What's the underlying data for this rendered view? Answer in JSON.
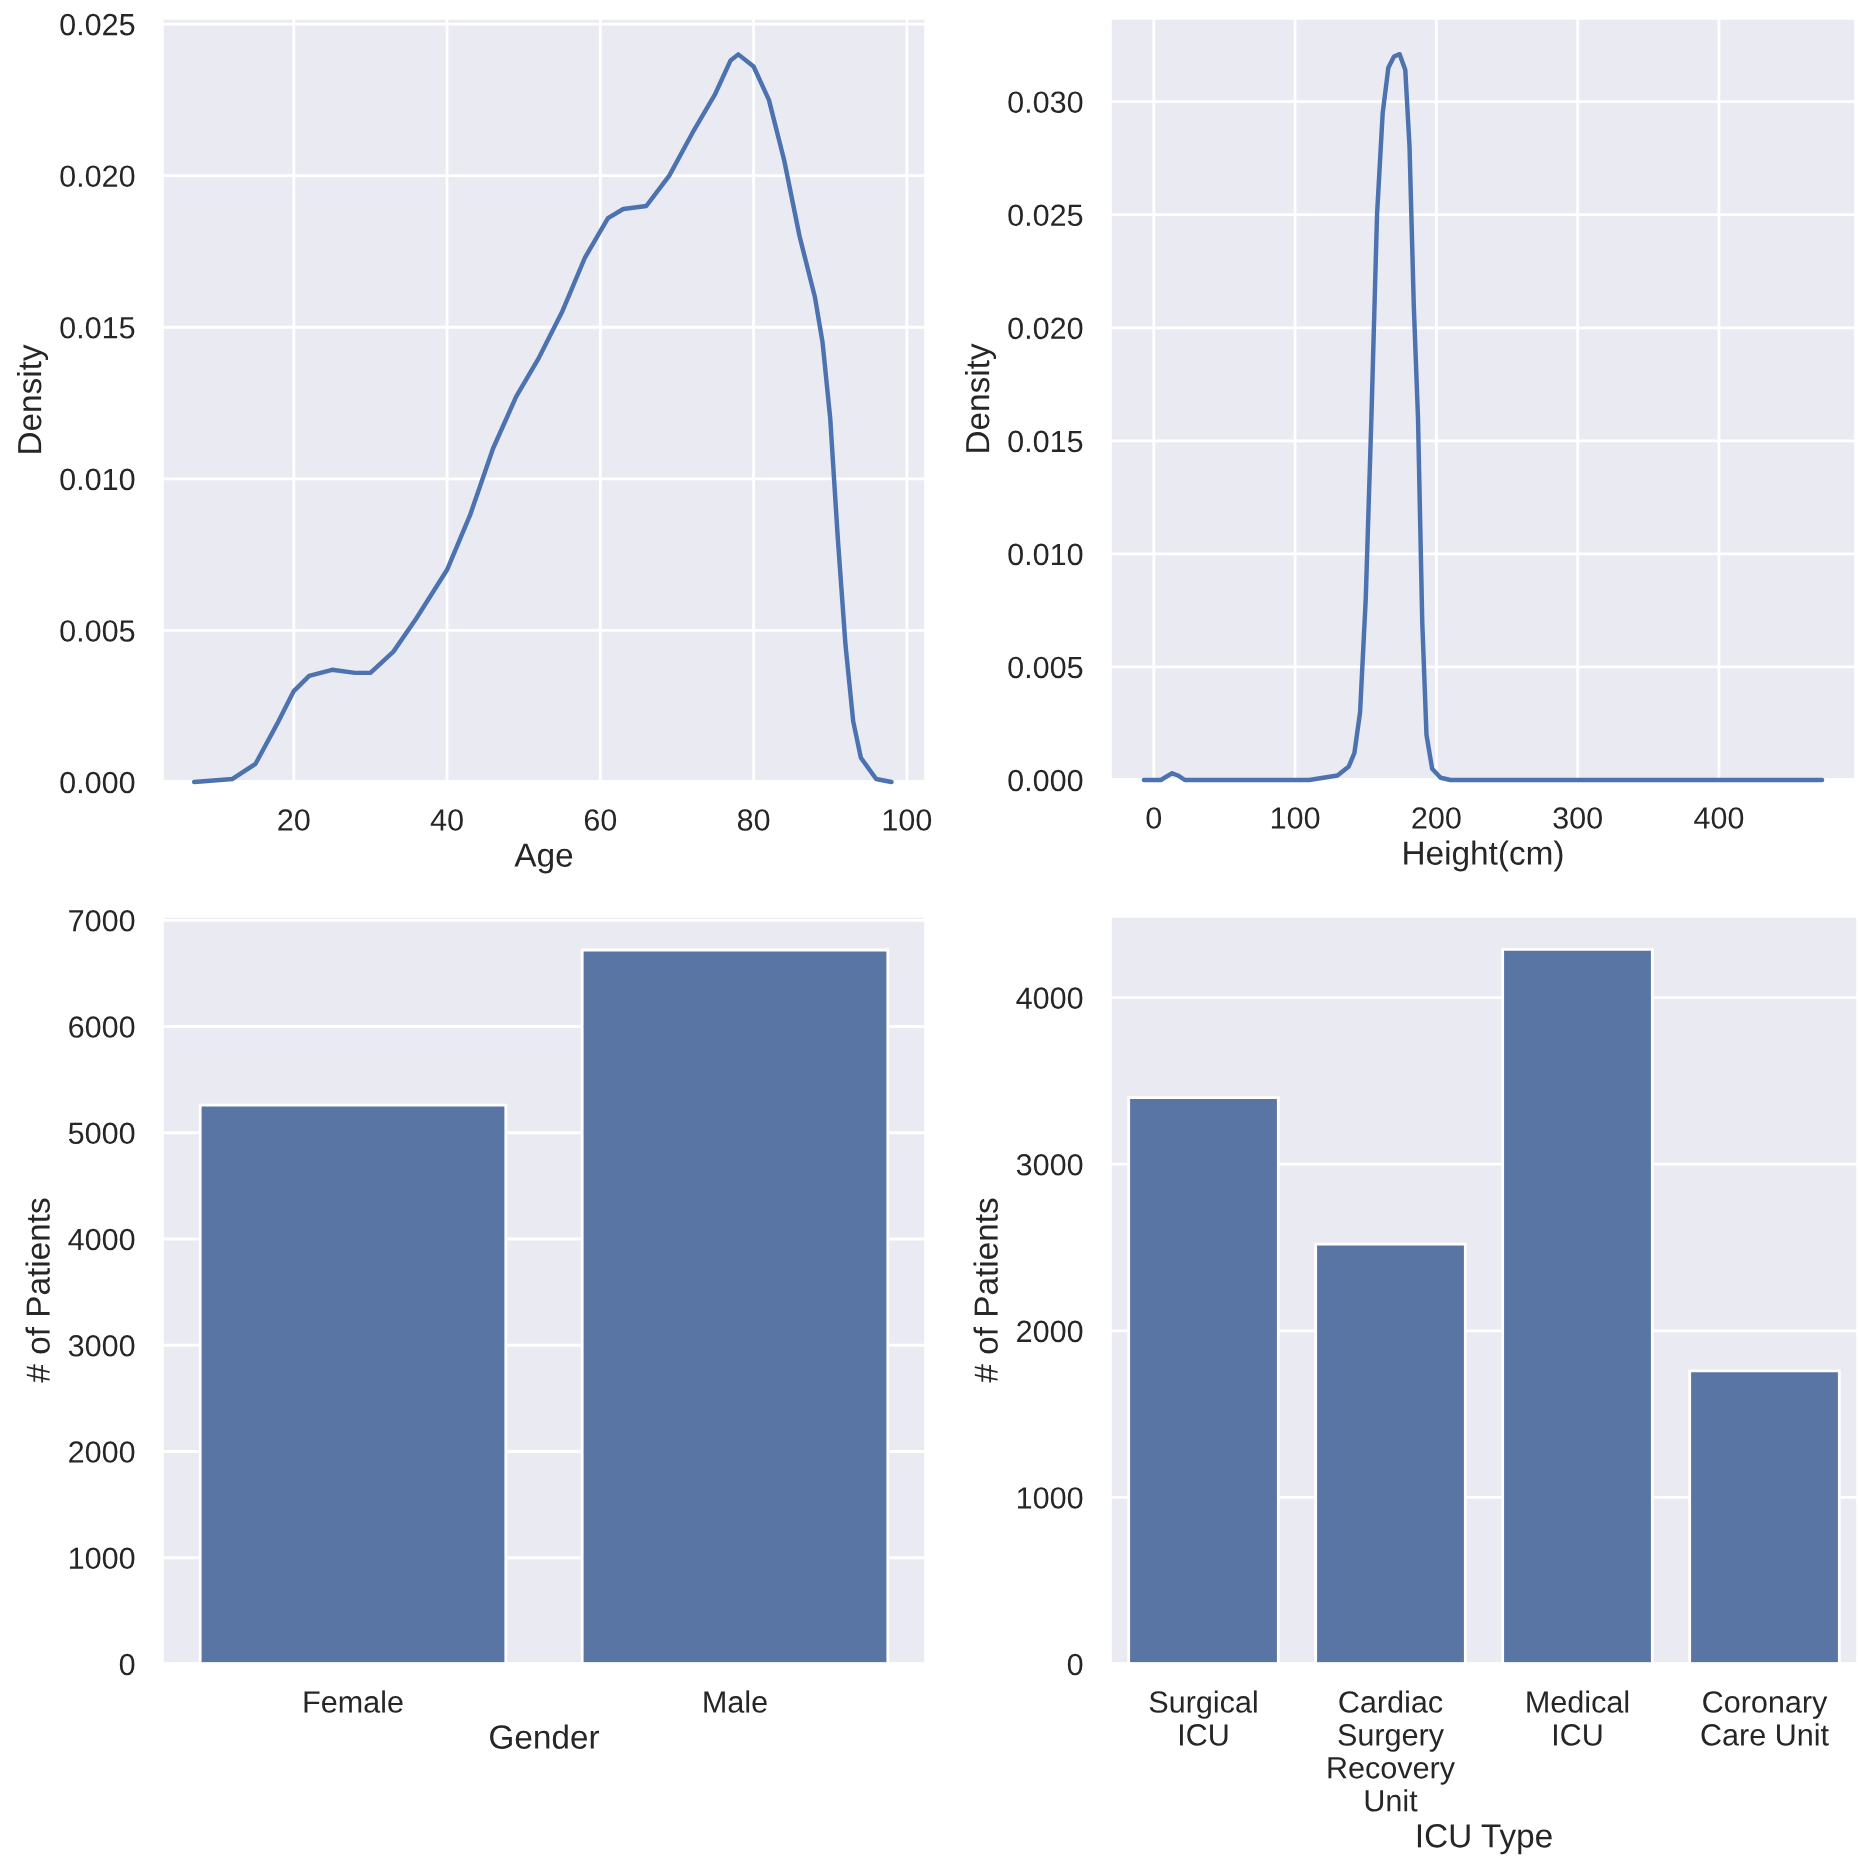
{
  "chart_data": [
    {
      "type": "line",
      "xlabel": "Age",
      "ylabel": "Density",
      "grid": true,
      "x": [
        7,
        12,
        15,
        18,
        20,
        22,
        25,
        28,
        30,
        33,
        36,
        40,
        43,
        46,
        49,
        52,
        55,
        58,
        61,
        63,
        66,
        69,
        72,
        75,
        77,
        78,
        80,
        82,
        84,
        86,
        88,
        89,
        90,
        91,
        92,
        93,
        94,
        96,
        98
      ],
      "series": [
        {
          "color": "#4c72b0",
          "values": [
            0,
            0.0001,
            0.0006,
            0.002,
            0.003,
            0.0035,
            0.0037,
            0.0036,
            0.0036,
            0.0043,
            0.0054,
            0.007,
            0.0088,
            0.011,
            0.0127,
            0.014,
            0.0155,
            0.0173,
            0.0186,
            0.0189,
            0.019,
            0.02,
            0.0214,
            0.0227,
            0.0238,
            0.024,
            0.0236,
            0.0225,
            0.0205,
            0.018,
            0.016,
            0.0145,
            0.012,
            0.008,
            0.0045,
            0.002,
            0.0008,
            0.0001,
            0
          ]
        }
      ],
      "xlim": [
        2.8,
        102.5
      ],
      "xticks": [
        20,
        40,
        60,
        80,
        100
      ],
      "ylim": [
        0,
        0.0252
      ],
      "yticks": [
        {
          "value": 0,
          "label": "0.000"
        },
        {
          "value": 0.005,
          "label": "0.005"
        },
        {
          "value": 0.01,
          "label": "0.010"
        },
        {
          "value": 0.015,
          "label": "0.015"
        },
        {
          "value": 0.02,
          "label": "0.020"
        },
        {
          "value": 0.025,
          "label": "0.025"
        }
      ]
    },
    {
      "type": "line",
      "xlabel": "Height(cm)",
      "ylabel": "Density",
      "grid": true,
      "x": [
        -7,
        5,
        13,
        17,
        22,
        110,
        120,
        130,
        138,
        142,
        146,
        150,
        154,
        158,
        162,
        166,
        170,
        174,
        178,
        181,
        184,
        187,
        190,
        193,
        197,
        203,
        210,
        473
      ],
      "series": [
        {
          "color": "#4c72b0",
          "values": [
            0,
            0,
            0.0003,
            0.0002,
            0,
            0,
            0.0001,
            0.0002,
            0.0006,
            0.0012,
            0.003,
            0.008,
            0.016,
            0.025,
            0.0295,
            0.0315,
            0.032,
            0.0321,
            0.0314,
            0.028,
            0.021,
            0.016,
            0.007,
            0.002,
            0.0005,
            0.0001,
            0,
            0
          ]
        }
      ],
      "xlim": [
        -31,
        497
      ],
      "xticks": [
        0,
        100,
        200,
        300,
        400
      ],
      "ylim": [
        0,
        0.0337
      ],
      "yticks": [
        {
          "value": 0,
          "label": "0.000"
        },
        {
          "value": 0.005,
          "label": "0.005"
        },
        {
          "value": 0.01,
          "label": "0.010"
        },
        {
          "value": 0.015,
          "label": "0.015"
        },
        {
          "value": 0.02,
          "label": "0.020"
        },
        {
          "value": 0.025,
          "label": "0.025"
        },
        {
          "value": 0.03,
          "label": "0.030"
        }
      ]
    },
    {
      "type": "bar",
      "xlabel": "Gender",
      "ylabel": "# of Patients",
      "grid": "y",
      "categories": [
        "Female",
        "Male"
      ],
      "values": [
        5260,
        6720
      ],
      "color": "#5975a4",
      "ylim": [
        0,
        7040
      ],
      "yticks": [
        0,
        1000,
        2000,
        3000,
        4000,
        5000,
        6000,
        7000
      ]
    },
    {
      "type": "bar",
      "xlabel": "ICU Type",
      "ylabel": "# of Patients",
      "grid": "y",
      "categories": [
        "Surgical\nICU",
        "Cardiac\nSurgery\nRecovery\nUnit",
        "Medical\nICU",
        "Coronary\nCare Unit"
      ],
      "values": [
        3400,
        2520,
        4290,
        1760
      ],
      "color": "#5975a4",
      "ylim": [
        0,
        4490
      ],
      "yticks": [
        0,
        1000,
        2000,
        3000,
        4000
      ]
    }
  ]
}
